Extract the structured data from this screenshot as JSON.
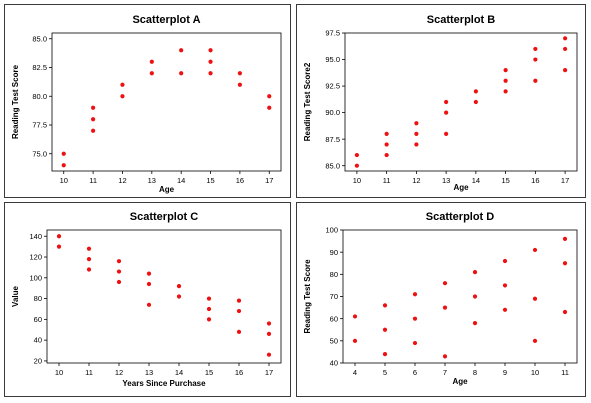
{
  "chart_data": [
    {
      "type": "scatter",
      "title": "Scatterplot A",
      "xlabel": "Age",
      "ylabel": "Reading Test Score",
      "xlim": [
        9.6,
        17.4
      ],
      "ylim": [
        73.5,
        85.5
      ],
      "xticks": [
        "10",
        "11",
        "12",
        "13",
        "14",
        "15",
        "16",
        "17"
      ],
      "yticks": [
        "75.0",
        "77.5",
        "80.0",
        "82.5",
        "85.0"
      ],
      "x": [
        10,
        10,
        11,
        11,
        11,
        12,
        12,
        13,
        13,
        14,
        14,
        15,
        15,
        15,
        16,
        16,
        17,
        17
      ],
      "y": [
        74,
        75,
        77,
        78,
        79,
        80,
        81,
        82,
        83,
        82,
        84,
        82,
        83,
        84,
        81,
        82,
        79,
        80
      ]
    },
    {
      "type": "scatter",
      "title": "Scatterplot B",
      "xlabel": "Age",
      "ylabel": "Reading Test Score2",
      "xlim": [
        9.6,
        17.4
      ],
      "ylim": [
        84.5,
        97.5
      ],
      "xticks": [
        "10",
        "11",
        "12",
        "13",
        "14",
        "15",
        "16",
        "17"
      ],
      "yticks": [
        "85.0",
        "87.5",
        "90.0",
        "92.5",
        "95.0",
        "97.5"
      ],
      "x": [
        10,
        10,
        11,
        11,
        11,
        12,
        12,
        12,
        13,
        13,
        13,
        14,
        14,
        15,
        15,
        15,
        16,
        16,
        16,
        17,
        17,
        17
      ],
      "y": [
        85,
        86,
        86,
        87,
        88,
        87,
        88,
        89,
        88,
        90,
        91,
        91,
        92,
        92,
        93,
        94,
        93,
        95,
        96,
        94,
        96,
        97
      ]
    },
    {
      "type": "scatter",
      "title": "Scatterplot C",
      "xlabel": "Years Since Purchase",
      "ylabel": "Value",
      "xlim": [
        9.6,
        17.4
      ],
      "ylim": [
        18,
        146
      ],
      "xticks": [
        "10",
        "11",
        "12",
        "13",
        "14",
        "15",
        "16",
        "17"
      ],
      "yticks": [
        "20",
        "40",
        "60",
        "80",
        "100",
        "120",
        "140"
      ],
      "x": [
        10,
        10,
        11,
        11,
        11,
        12,
        12,
        12,
        13,
        13,
        13,
        14,
        14,
        15,
        15,
        15,
        16,
        16,
        16,
        17,
        17,
        17
      ],
      "y": [
        140,
        130,
        128,
        118,
        108,
        116,
        106,
        96,
        104,
        94,
        74,
        92,
        82,
        80,
        70,
        60,
        78,
        68,
        48,
        56,
        46,
        26
      ]
    },
    {
      "type": "scatter",
      "title": "Scatterplot D",
      "xlabel": "Age",
      "ylabel": "Reading Test Score",
      "xlim": [
        3.6,
        11.4
      ],
      "ylim": [
        40,
        100
      ],
      "xticks": [
        "4",
        "5",
        "6",
        "7",
        "8",
        "9",
        "10",
        "11"
      ],
      "yticks": [
        "40",
        "50",
        "60",
        "70",
        "80",
        "90",
        "100"
      ],
      "x": [
        4,
        4,
        5,
        5,
        5,
        6,
        6,
        6,
        7,
        7,
        7,
        8,
        8,
        8,
        9,
        9,
        9,
        10,
        10,
        10,
        11,
        11,
        11
      ],
      "y": [
        61,
        50,
        66,
        55,
        44,
        71,
        60,
        49,
        76,
        65,
        43,
        81,
        70,
        58,
        86,
        75,
        64,
        91,
        69,
        50,
        96,
        85,
        63
      ]
    }
  ]
}
